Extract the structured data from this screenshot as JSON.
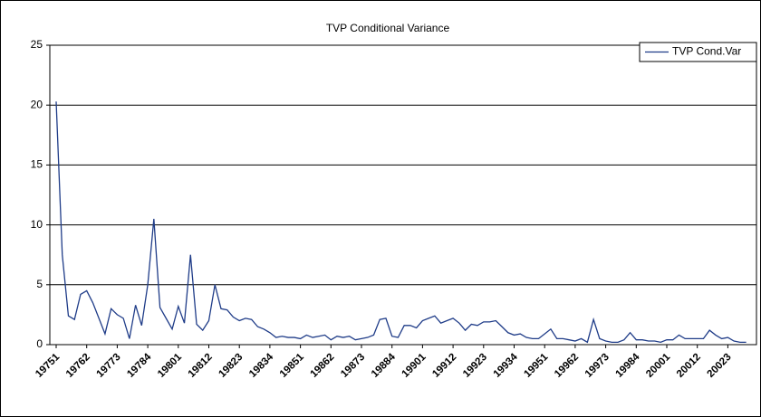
{
  "chart_data": {
    "type": "line",
    "title": "TVP Conditional Variance",
    "categories": [
      "19751",
      null,
      null,
      null,
      null,
      "19762",
      null,
      null,
      null,
      null,
      "19773",
      null,
      null,
      null,
      null,
      "19784",
      null,
      null,
      null,
      null,
      "19801",
      null,
      null,
      null,
      null,
      "19812",
      null,
      null,
      null,
      null,
      "19823",
      null,
      null,
      null,
      null,
      "19834",
      null,
      null,
      null,
      null,
      "19851",
      null,
      null,
      null,
      null,
      "19862",
      null,
      null,
      null,
      null,
      "19873",
      null,
      null,
      null,
      null,
      "19884",
      null,
      null,
      null,
      null,
      "19901",
      null,
      null,
      null,
      null,
      "19912",
      null,
      null,
      null,
      null,
      "19923",
      null,
      null,
      null,
      null,
      "19934",
      null,
      null,
      null,
      null,
      "19951",
      null,
      null,
      null,
      null,
      "19962",
      null,
      null,
      null,
      null,
      "19973",
      null,
      null,
      null,
      null,
      "19984",
      null,
      null,
      null,
      null,
      "20001",
      null,
      null,
      null,
      null,
      "20012",
      null,
      null,
      null,
      null,
      "20023",
      null,
      null,
      null
    ],
    "series": [
      {
        "name": "TVP Cond.Var",
        "color": "#1f3c88",
        "values": [
          20.3,
          7.5,
          2.4,
          2.1,
          4.2,
          4.5,
          3.5,
          2.2,
          0.9,
          3.0,
          2.5,
          2.2,
          0.5,
          3.3,
          1.6,
          5.0,
          10.5,
          3.1,
          2.2,
          1.3,
          3.2,
          1.8,
          7.5,
          1.7,
          1.2,
          2.0,
          5.0,
          3.0,
          2.9,
          2.3,
          2.0,
          2.2,
          2.1,
          1.5,
          1.3,
          1.0,
          0.6,
          0.7,
          0.6,
          0.6,
          0.5,
          0.8,
          0.6,
          0.7,
          0.8,
          0.4,
          0.7,
          0.6,
          0.7,
          0.4,
          0.5,
          0.6,
          0.8,
          2.1,
          2.2,
          0.7,
          0.6,
          1.6,
          1.6,
          1.4,
          2.0,
          2.2,
          2.4,
          1.8,
          2.0,
          2.2,
          1.8,
          1.2,
          1.7,
          1.6,
          1.9,
          1.9,
          2.0,
          1.5,
          1.0,
          0.8,
          0.9,
          0.6,
          0.5,
          0.5,
          0.9,
          1.3,
          0.5,
          0.5,
          0.4,
          0.3,
          0.5,
          0.2,
          2.1,
          0.5,
          0.3,
          0.2,
          0.2,
          0.4,
          1.0,
          0.4,
          0.4,
          0.3,
          0.3,
          0.2,
          0.4,
          0.4,
          0.8,
          0.5,
          0.5,
          0.5,
          0.5,
          1.2,
          0.8,
          0.5,
          0.6,
          0.3,
          0.2,
          0.2
        ]
      }
    ],
    "ylim": [
      0,
      25
    ],
    "yticks": [
      0,
      5,
      10,
      15,
      20,
      25
    ],
    "grid": true,
    "legend": "top-right"
  }
}
